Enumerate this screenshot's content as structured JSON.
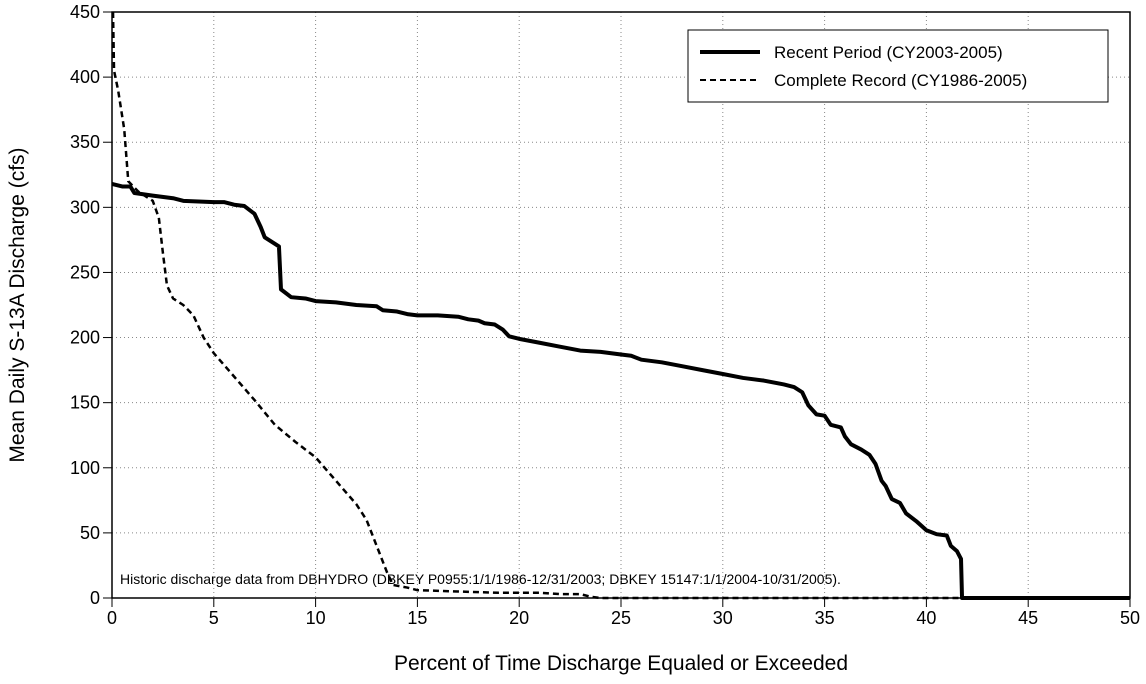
{
  "chart_data": {
    "type": "line",
    "xlabel": "Percent of Time Discharge Equaled or Exceeded",
    "ylabel": "Mean Daily S-13A Discharge (cfs)",
    "annotation": "Historic discharge data from DBHYDRO (DBKEY P0955:1/1/1986-12/31/2003; DBKEY 15147:1/1/2004-10/31/2005).",
    "xlim": [
      0,
      50
    ],
    "xticks": [
      0,
      5,
      10,
      15,
      20,
      25,
      30,
      35,
      40,
      45,
      50
    ],
    "ylim": [
      0,
      450
    ],
    "yticks": [
      0,
      50,
      100,
      150,
      200,
      250,
      300,
      350,
      400,
      450
    ],
    "grid": true,
    "legend": "upper right",
    "series": [
      {
        "name": "Recent Period (CY2003-2005)",
        "color": "#000000",
        "style": "solid",
        "x": [
          0,
          0.5,
          0.9,
          1.1,
          2,
          3,
          3.5,
          5,
          5.5,
          6,
          6.5,
          7,
          7.3,
          7.5,
          8,
          8.2,
          8.3,
          8.8,
          9.5,
          10,
          11,
          12,
          13,
          13.3,
          14,
          14.5,
          15,
          16,
          17,
          17.5,
          18,
          18.3,
          18.8,
          19.2,
          19.5,
          20,
          21,
          22,
          23,
          24,
          25,
          25.5,
          26,
          27,
          28,
          29,
          30,
          31,
          32,
          33,
          33.5,
          33.9,
          34.2,
          34.6,
          35,
          35.3,
          35.8,
          36,
          36.3,
          36.8,
          37.2,
          37.5,
          37.8,
          38,
          38.3,
          38.7,
          39,
          39.5,
          40,
          40.5,
          41,
          41.2,
          41.5,
          41.7,
          41.75,
          50
        ],
        "values": [
          318,
          316,
          316,
          311,
          309,
          307,
          305,
          304,
          304,
          302,
          301,
          295,
          285,
          277,
          272,
          270,
          237,
          231,
          230,
          228,
          227,
          225,
          224,
          221,
          220,
          218,
          217,
          217,
          216,
          214,
          213,
          211,
          210,
          206,
          201,
          199,
          196,
          193,
          190,
          189,
          187,
          186,
          183,
          181,
          178,
          175,
          172,
          169,
          167,
          164,
          162,
          158,
          148,
          141,
          140,
          133,
          131,
          124,
          118,
          114,
          110,
          103,
          90,
          86,
          76,
          73,
          65,
          59,
          52,
          49,
          48,
          40,
          36,
          30,
          0,
          0
        ]
      },
      {
        "name": "Complete Record (CY1986-2005)",
        "color": "#000000",
        "style": "dashed",
        "x": [
          0.05,
          0.1,
          0.3,
          0.6,
          0.8,
          1.3,
          2,
          2.3,
          2.5,
          2.7,
          3,
          3.5,
          4,
          4.5,
          5,
          6,
          7,
          8,
          9,
          10,
          11,
          12,
          12.5,
          13,
          13.5,
          13.8,
          14.5,
          15,
          17,
          19,
          21,
          22,
          23,
          23.5,
          24,
          50
        ],
        "values": [
          450,
          405,
          390,
          360,
          320,
          312,
          305,
          292,
          265,
          240,
          230,
          225,
          217,
          200,
          188,
          170,
          152,
          133,
          120,
          108,
          90,
          72,
          60,
          40,
          20,
          10,
          8,
          6,
          5,
          4,
          4,
          3,
          3,
          1,
          0,
          0
        ]
      }
    ]
  }
}
